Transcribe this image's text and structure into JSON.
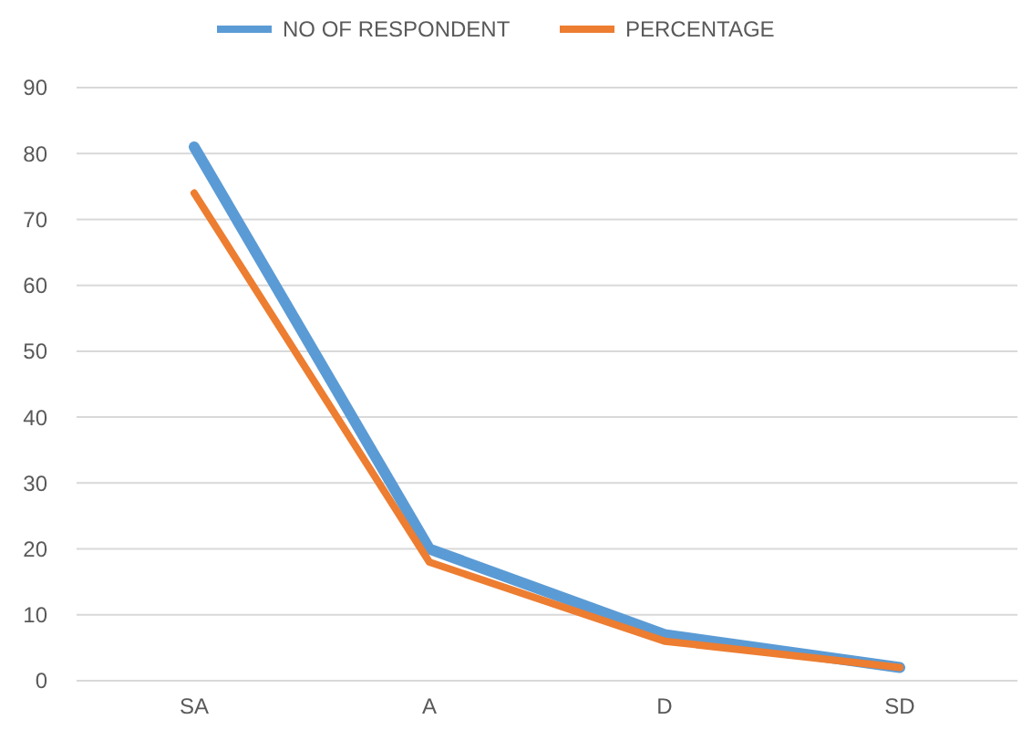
{
  "chart_data": {
    "type": "line",
    "categories": [
      "SA",
      "A",
      "D",
      "SD"
    ],
    "series": [
      {
        "name": "NO OF RESPONDENT",
        "color": "#5b9bd5",
        "values": [
          81,
          20,
          7,
          2
        ]
      },
      {
        "name": "PERCENTAGE",
        "color": "#ed7d31",
        "values": [
          74,
          18,
          6,
          2
        ]
      }
    ],
    "ylim": [
      0,
      90
    ],
    "yticks": [
      0,
      10,
      20,
      30,
      40,
      50,
      60,
      70,
      80,
      90
    ],
    "grid": "y",
    "legend": "top",
    "marker": "none",
    "line_style": "solid"
  }
}
